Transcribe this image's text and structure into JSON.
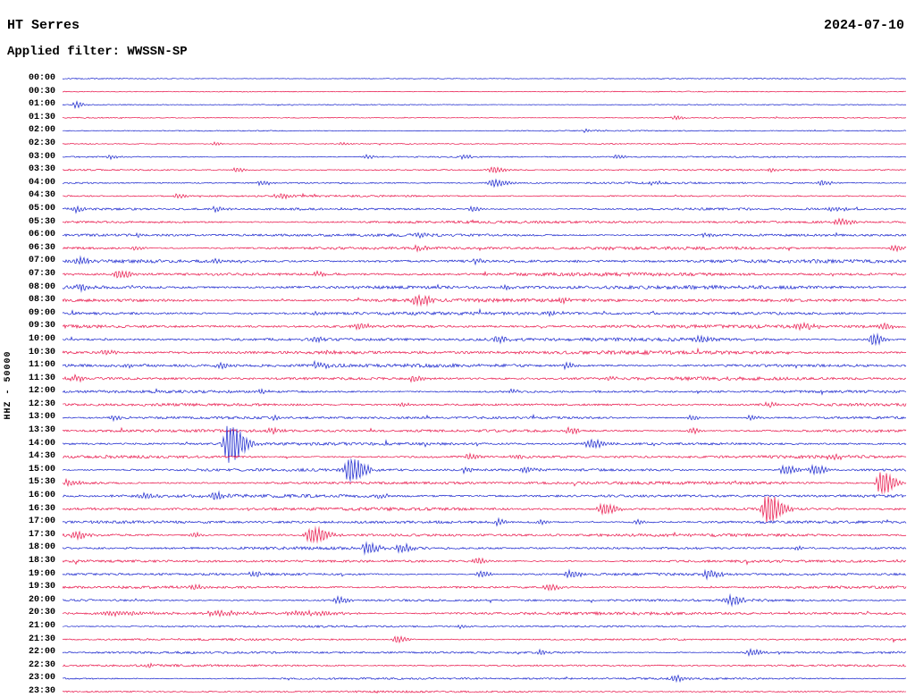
{
  "header": {
    "station": "HT Serres",
    "date": "2024-07-10",
    "filter_line": "Applied filter: WWSSN-SP",
    "channel_scale": "HHZ - 50000"
  },
  "chart_data": {
    "type": "line",
    "subtype": "helicorder-seismogram",
    "title": "HT Serres",
    "station": "HT Serres",
    "date": "2024-07-10",
    "filter": "WWSSN-SP",
    "channel_scale_label": "HHZ - 50000",
    "row_duration_minutes": 30,
    "num_rows": 48,
    "legend": "none",
    "grid": false,
    "trace_colors": {
      "b": "#1420cc",
      "r": "#e81248"
    },
    "rows": [
      {
        "t": "00:00",
        "c": "b",
        "n": 0.5,
        "ev": []
      },
      {
        "t": "00:30",
        "c": "r",
        "n": 0.5,
        "ev": []
      },
      {
        "t": "01:00",
        "c": "b",
        "n": 0.5,
        "ev": [
          [
            0.015,
            3.5,
            5
          ]
        ]
      },
      {
        "t": "01:30",
        "c": "r",
        "n": 0.5,
        "ev": [
          [
            0.725,
            2.5,
            5
          ]
        ]
      },
      {
        "t": "02:00",
        "c": "b",
        "n": 0.6,
        "ev": [
          [
            0.62,
            1.8,
            4
          ]
        ]
      },
      {
        "t": "02:30",
        "c": "r",
        "n": 0.6,
        "ev": [
          [
            0.18,
            1.8,
            4
          ],
          [
            0.33,
            1.8,
            4
          ]
        ]
      },
      {
        "t": "03:00",
        "c": "b",
        "n": 0.7,
        "ev": [
          [
            0.055,
            2.2,
            5
          ],
          [
            0.36,
            2.2,
            5
          ],
          [
            0.475,
            2.2,
            5
          ],
          [
            0.655,
            2.2,
            5
          ]
        ]
      },
      {
        "t": "03:30",
        "c": "r",
        "n": 0.8,
        "ev": [
          [
            0.205,
            2.5,
            5
          ],
          [
            0.51,
            3.5,
            7
          ],
          [
            0.84,
            2.2,
            5
          ]
        ]
      },
      {
        "t": "04:00",
        "c": "b",
        "n": 0.9,
        "ev": [
          [
            0.235,
            2.6,
            6
          ],
          [
            0.51,
            4.2,
            9
          ],
          [
            0.7,
            2.2,
            5
          ],
          [
            0.9,
            2.6,
            6
          ]
        ]
      },
      {
        "t": "04:30",
        "c": "r",
        "n": 0.9,
        "ev": [
          [
            0.135,
            2.6,
            5
          ],
          [
            0.255,
            3.2,
            6
          ]
        ]
      },
      {
        "t": "05:00",
        "c": "b",
        "n": 1.2,
        "ev": [
          [
            0.015,
            3.2,
            7
          ],
          [
            0.18,
            2.6,
            5
          ],
          [
            0.485,
            2.6,
            5
          ],
          [
            0.91,
            2.6,
            9
          ]
        ]
      },
      {
        "t": "05:30",
        "c": "r",
        "n": 1.3,
        "ev": [
          [
            0.92,
            3.2,
            9
          ]
        ]
      },
      {
        "t": "06:00",
        "c": "b",
        "n": 1.4,
        "ev": [
          [
            0.09,
            2.2,
            5
          ],
          [
            0.42,
            2.2,
            5
          ],
          [
            0.76,
            2.2,
            5
          ]
        ]
      },
      {
        "t": "06:30",
        "c": "r",
        "n": 1.5,
        "ev": [
          [
            0.085,
            2.6,
            5
          ],
          [
            0.42,
            2.6,
            5
          ],
          [
            0.64,
            2.2,
            5
          ],
          [
            0.985,
            3.2,
            7
          ]
        ]
      },
      {
        "t": "07:00",
        "c": "b",
        "n": 1.6,
        "ev": [
          [
            0.02,
            3.2,
            7
          ],
          [
            0.18,
            2.6,
            5
          ],
          [
            0.49,
            2.6,
            5
          ]
        ]
      },
      {
        "t": "07:30",
        "c": "r",
        "n": 1.7,
        "ev": [
          [
            0.065,
            4.8,
            9
          ],
          [
            0.3,
            2.6,
            5
          ]
        ]
      },
      {
        "t": "08:00",
        "c": "b",
        "n": 1.8,
        "ev": [
          [
            0.02,
            3.2,
            7
          ],
          [
            0.52,
            2.2,
            5
          ]
        ]
      },
      {
        "t": "08:30",
        "c": "r",
        "n": 1.7,
        "ev": [
          [
            0.42,
            4.8,
            9
          ],
          [
            0.59,
            2.6,
            5
          ]
        ]
      },
      {
        "t": "09:00",
        "c": "b",
        "n": 1.6,
        "ev": [
          [
            0.3,
            2.2,
            5
          ],
          [
            0.575,
            2.6,
            5
          ]
        ]
      },
      {
        "t": "09:30",
        "c": "r",
        "n": 1.6,
        "ev": [
          [
            0.35,
            3.2,
            7
          ],
          [
            0.875,
            3.2,
            9
          ],
          [
            0.97,
            3.2,
            7
          ]
        ]
      },
      {
        "t": "10:00",
        "c": "b",
        "n": 1.7,
        "ev": [
          [
            0.3,
            2.6,
            5
          ],
          [
            0.515,
            3.6,
            7
          ],
          [
            0.755,
            3.2,
            6
          ],
          [
            0.96,
            6.5,
            6
          ]
        ]
      },
      {
        "t": "10:30",
        "c": "r",
        "n": 1.8,
        "ev": [
          [
            0.05,
            2.6,
            7
          ],
          [
            0.31,
            2.6,
            5
          ]
        ]
      },
      {
        "t": "11:00",
        "c": "b",
        "n": 1.7,
        "ev": [
          [
            0.075,
            3.2,
            6
          ],
          [
            0.185,
            3.2,
            6
          ],
          [
            0.3,
            3.6,
            7
          ],
          [
            0.595,
            3.2,
            6
          ]
        ]
      },
      {
        "t": "11:30",
        "c": "r",
        "n": 1.6,
        "ev": [
          [
            0.015,
            3.6,
            7
          ],
          [
            0.415,
            3.2,
            6
          ],
          [
            0.645,
            2.6,
            5
          ]
        ]
      },
      {
        "t": "12:00",
        "c": "b",
        "n": 1.3,
        "ev": [
          [
            0.235,
            2.2,
            5
          ],
          [
            0.53,
            2.2,
            5
          ]
        ]
      },
      {
        "t": "12:30",
        "c": "r",
        "n": 1.3,
        "ev": [
          [
            0.4,
            2.2,
            5
          ],
          [
            0.835,
            2.8,
            5
          ]
        ]
      },
      {
        "t": "13:00",
        "c": "b",
        "n": 1.3,
        "ev": [
          [
            0.06,
            2.6,
            5
          ],
          [
            0.25,
            2.6,
            5
          ],
          [
            0.745,
            2.6,
            5
          ],
          [
            0.815,
            2.6,
            5
          ]
        ]
      },
      {
        "t": "13:30",
        "c": "r",
        "n": 1.4,
        "ev": [
          [
            0.245,
            3.2,
            6
          ],
          [
            0.6,
            3.2,
            6
          ],
          [
            0.745,
            3.2,
            6
          ]
        ]
      },
      {
        "t": "14:00",
        "c": "b",
        "n": 1.4,
        "ev": [
          [
            0.197,
            22,
            9
          ],
          [
            0.625,
            4.5,
            9
          ]
        ]
      },
      {
        "t": "14:30",
        "c": "r",
        "n": 1.4,
        "ev": [
          [
            0.48,
            2.6,
            5
          ],
          [
            0.535,
            2.6,
            5
          ],
          [
            0.91,
            3.6,
            7
          ]
        ]
      },
      {
        "t": "15:00",
        "c": "b",
        "n": 1.4,
        "ev": [
          [
            0.34,
            14,
            9
          ],
          [
            0.475,
            3.2,
            6
          ],
          [
            0.545,
            3.6,
            7
          ],
          [
            0.855,
            5,
            8
          ],
          [
            0.89,
            5,
            8
          ]
        ]
      },
      {
        "t": "15:30",
        "c": "r",
        "n": 1.5,
        "ev": [
          [
            0.005,
            3.2,
            7
          ],
          [
            0.97,
            13,
            8
          ]
        ]
      },
      {
        "t": "16:00",
        "c": "b",
        "n": 1.6,
        "ev": [
          [
            0.095,
            3.2,
            7
          ],
          [
            0.18,
            3.6,
            7
          ],
          [
            0.375,
            2.6,
            5
          ]
        ]
      },
      {
        "t": "16:30",
        "c": "r",
        "n": 1.5,
        "ev": [
          [
            0.64,
            6.5,
            8
          ],
          [
            0.835,
            16,
            9
          ]
        ]
      },
      {
        "t": "17:00",
        "c": "b",
        "n": 1.4,
        "ev": [
          [
            0.515,
            3.2,
            6
          ],
          [
            0.565,
            2.6,
            5
          ],
          [
            0.68,
            2.6,
            5
          ]
        ]
      },
      {
        "t": "17:30",
        "c": "r",
        "n": 1.5,
        "ev": [
          [
            0.015,
            4.2,
            7
          ],
          [
            0.155,
            2.6,
            5
          ],
          [
            0.295,
            8.5,
            10
          ]
        ]
      },
      {
        "t": "18:00",
        "c": "b",
        "n": 1.4,
        "ev": [
          [
            0.36,
            6.5,
            7
          ],
          [
            0.4,
            4.5,
            7
          ],
          [
            0.87,
            2.6,
            5
          ]
        ]
      },
      {
        "t": "18:30",
        "c": "r",
        "n": 1.3,
        "ev": [
          [
            0.49,
            3.2,
            6
          ]
        ]
      },
      {
        "t": "19:00",
        "c": "b",
        "n": 1.3,
        "ev": [
          [
            0.225,
            3.2,
            6
          ],
          [
            0.495,
            3.2,
            6
          ],
          [
            0.6,
            3.6,
            7
          ],
          [
            0.765,
            4.8,
            7
          ]
        ]
      },
      {
        "t": "19:30",
        "c": "r",
        "n": 1.2,
        "ev": [
          [
            0.155,
            2.6,
            5
          ],
          [
            0.575,
            3.2,
            7
          ]
        ]
      },
      {
        "t": "20:00",
        "c": "b",
        "n": 1.2,
        "ev": [
          [
            0.325,
            3.6,
            7
          ],
          [
            0.79,
            4.8,
            8
          ]
        ]
      },
      {
        "t": "20:30",
        "c": "r",
        "n": 1.4,
        "ev": [
          [
            0.06,
            2.2,
            25
          ],
          [
            0.18,
            2.2,
            25
          ],
          [
            0.28,
            2.2,
            25
          ]
        ]
      },
      {
        "t": "21:00",
        "c": "b",
        "n": 1.0,
        "ev": [
          [
            0.47,
            2.2,
            5
          ]
        ]
      },
      {
        "t": "21:30",
        "c": "r",
        "n": 1.0,
        "ev": [
          [
            0.395,
            3.6,
            7
          ]
        ]
      },
      {
        "t": "22:00",
        "c": "b",
        "n": 1.1,
        "ev": [
          [
            0.565,
            2.6,
            5
          ],
          [
            0.815,
            3.6,
            7
          ]
        ]
      },
      {
        "t": "22:30",
        "c": "r",
        "n": 1.0,
        "ev": [
          [
            0.1,
            2.2,
            5
          ]
        ]
      },
      {
        "t": "23:00",
        "c": "b",
        "n": 1.0,
        "ev": [
          [
            0.725,
            3.2,
            6
          ]
        ]
      },
      {
        "t": "23:30",
        "c": "r",
        "n": 0.9,
        "ev": []
      }
    ]
  }
}
